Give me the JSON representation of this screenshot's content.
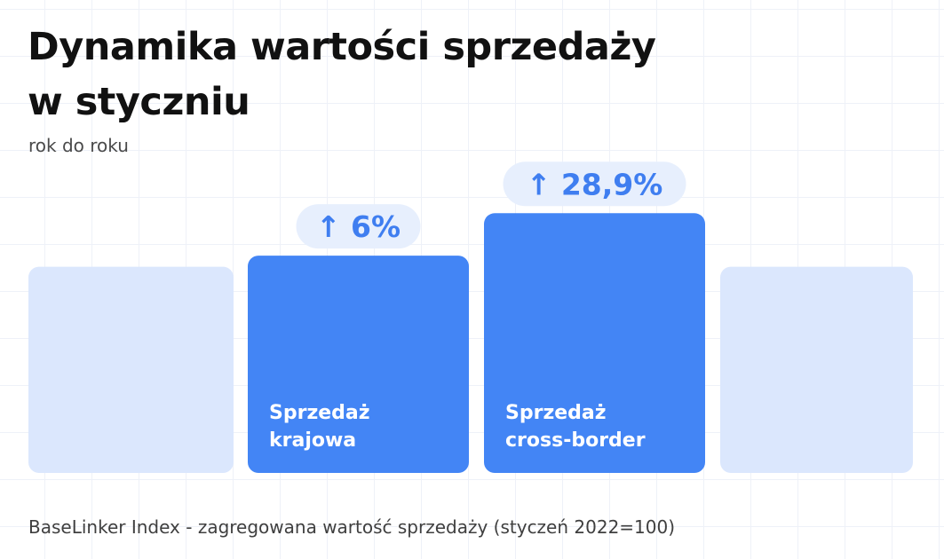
{
  "header": {
    "title_line1": "Dynamika wartości sprzedaży",
    "title_line2": "w styczniu",
    "subtitle": "rok do roku"
  },
  "footer": {
    "note": "BaseLinker Index - zagregowana wartość sprzedaży (styczeń 2022=100)"
  },
  "colors": {
    "bar_main": "#4385f5",
    "bar_faded": "#dbe7fd",
    "badge_bg": "#e7effd",
    "badge_text": "#3f7ef0",
    "bar_label": "#ffffff"
  },
  "chart_data": {
    "type": "bar",
    "title": "Dynamika wartości sprzedaży w styczniu",
    "subtitle": "rok do roku",
    "ylim": [
      0,
      140
    ],
    "grid": true,
    "bars": [
      {
        "label_lines": [],
        "value": 100,
        "change_label": "",
        "highlighted": false
      },
      {
        "label_lines": [
          "Sprzedaż",
          "krajowa"
        ],
        "value": 106,
        "change_label": "↑ 6%",
        "highlighted": true
      },
      {
        "label_lines": [
          "Sprzedaż",
          "cross-border"
        ],
        "value": 128.9,
        "change_label": "↑ 28,9%",
        "highlighted": true
      },
      {
        "label_lines": [],
        "value": 100,
        "change_label": "",
        "highlighted": false
      }
    ]
  }
}
